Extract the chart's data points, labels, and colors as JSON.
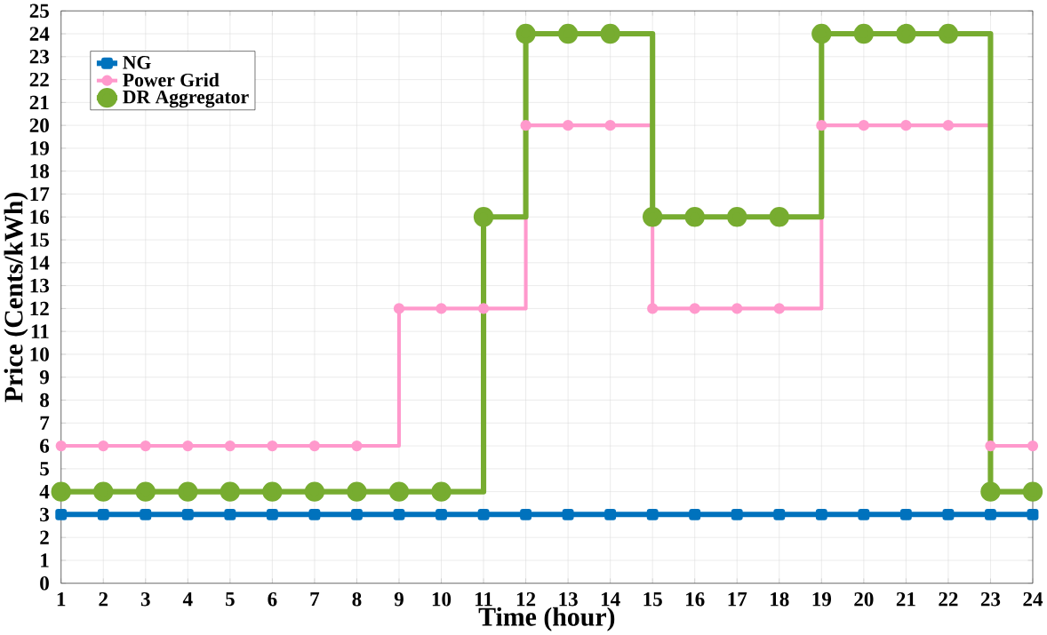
{
  "chart_data": {
    "type": "step",
    "xlabel": "Time (hour)",
    "ylabel": "Price (Cents/kWh)",
    "x": [
      1,
      2,
      3,
      4,
      5,
      6,
      7,
      8,
      9,
      10,
      11,
      12,
      13,
      14,
      15,
      16,
      17,
      18,
      19,
      20,
      21,
      22,
      23,
      24
    ],
    "series": [
      {
        "name": "NG",
        "color": "#0072bd",
        "marker": "square",
        "values": [
          3,
          3,
          3,
          3,
          3,
          3,
          3,
          3,
          3,
          3,
          3,
          3,
          3,
          3,
          3,
          3,
          3,
          3,
          3,
          3,
          3,
          3,
          3,
          3
        ]
      },
      {
        "name": "Power Grid",
        "color": "#ff99cc",
        "values": [
          6,
          6,
          6,
          6,
          6,
          6,
          6,
          6,
          12,
          12,
          12,
          20,
          20,
          20,
          12,
          12,
          12,
          12,
          20,
          20,
          20,
          20,
          6,
          6
        ]
      },
      {
        "name": "DR Aggregator",
        "color": "#77ac30",
        "values": [
          4,
          4,
          4,
          4,
          4,
          4,
          4,
          4,
          4,
          4,
          16,
          24,
          24,
          24,
          16,
          16,
          16,
          16,
          24,
          24,
          24,
          24,
          4,
          4
        ]
      }
    ],
    "xlim": [
      1,
      24
    ],
    "xticks": [
      1,
      2,
      3,
      4,
      5,
      6,
      7,
      8,
      9,
      10,
      11,
      12,
      13,
      14,
      15,
      16,
      17,
      18,
      19,
      20,
      21,
      22,
      23,
      24
    ],
    "ylim": [
      0,
      25
    ],
    "yticks": [
      0,
      1,
      2,
      3,
      4,
      5,
      6,
      7,
      8,
      9,
      10,
      11,
      12,
      13,
      14,
      15,
      16,
      17,
      18,
      19,
      20,
      21,
      22,
      23,
      24,
      25
    ],
    "grid": true,
    "legend": "top left",
    "marker": "circle",
    "line_style": "solid"
  }
}
